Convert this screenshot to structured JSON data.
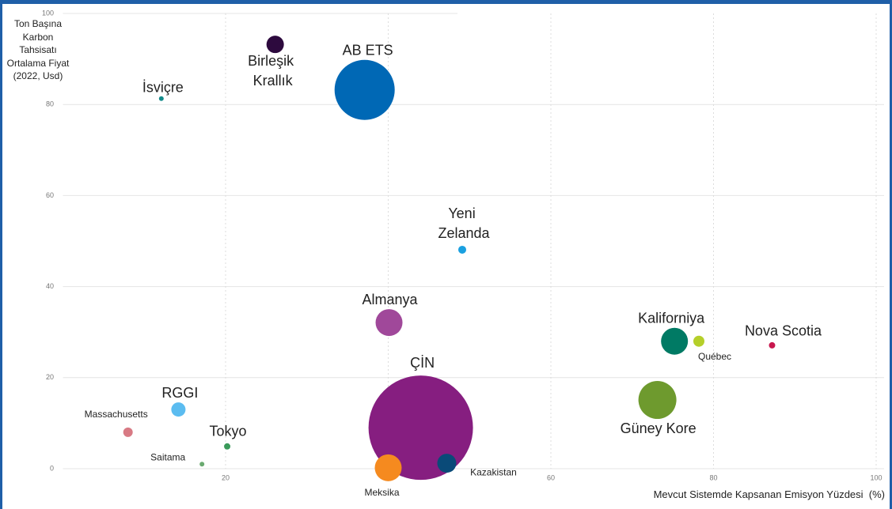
{
  "chart_data": {
    "type": "scatter",
    "x_label": "Mevcut Sistemde Kapsanan Emisyon Yüzdesi  (%)",
    "y_label": "Ton Başına Karbon Tahsisatı Ortalama Fiyat (2022, Usd)",
    "xlim": [
      0,
      100
    ],
    "ylim": [
      0,
      100
    ],
    "xticks": [
      20,
      40,
      60,
      80,
      100
    ],
    "yticks": [
      0,
      20,
      40,
      60,
      80,
      100
    ],
    "grid": true,
    "series": [
      {
        "name": "İsviçre",
        "color": "#138a8a",
        "x": [
          12.1
        ],
        "values": [
          81.3
        ],
        "sizes": [
          3
        ]
      },
      {
        "name": "Birleşik Krallık",
        "color": "#2d0a3e",
        "x": [
          26.1
        ],
        "values": [
          93.2
        ],
        "sizes": [
          11
        ]
      },
      {
        "name": "AB ETS",
        "color": "#0068b5",
        "x": [
          37.1
        ],
        "values": [
          83.2
        ],
        "sizes": [
          38
        ]
      },
      {
        "name": "Yeni Zelanda",
        "color": "#1aa0e0",
        "x": [
          49.1
        ],
        "values": [
          48.1
        ],
        "sizes": [
          5
        ]
      },
      {
        "name": "Almanya",
        "color": "#a0489a",
        "x": [
          40.1
        ],
        "values": [
          32.1
        ],
        "sizes": [
          17
        ]
      },
      {
        "name": "ÇİN",
        "color": "#861e80",
        "x": [
          44.0
        ],
        "values": [
          9.0
        ],
        "sizes": [
          66
        ]
      },
      {
        "name": "Meksika",
        "color": "#f58a1f",
        "x": [
          40.0
        ],
        "values": [
          0.2
        ],
        "sizes": [
          17
        ]
      },
      {
        "name": "Kazakistan",
        "color": "#0a4a78",
        "x": [
          47.2
        ],
        "values": [
          1.2
        ],
        "sizes": [
          12
        ]
      },
      {
        "name": "Kaliforniya",
        "color": "#007a64",
        "x": [
          75.2
        ],
        "values": [
          28.0
        ],
        "sizes": [
          17
        ]
      },
      {
        "name": "Québec",
        "color": "#b5cf2a",
        "x": [
          78.2
        ],
        "values": [
          28.0
        ],
        "sizes": [
          7
        ]
      },
      {
        "name": "Nova Scotia",
        "color": "#c8174e",
        "x": [
          87.2
        ],
        "values": [
          27.1
        ],
        "sizes": [
          4
        ]
      },
      {
        "name": "Güney Kore",
        "color": "#6e9a2e",
        "x": [
          73.1
        ],
        "values": [
          15.1
        ],
        "sizes": [
          24
        ]
      },
      {
        "name": "RGGI",
        "color": "#5bbcf0",
        "x": [
          14.2
        ],
        "values": [
          13.0
        ],
        "sizes": [
          9
        ]
      },
      {
        "name": "Massachusetts",
        "color": "#d87a84",
        "x": [
          8.0
        ],
        "values": [
          8.0
        ],
        "sizes": [
          6
        ]
      },
      {
        "name": "Tokyo",
        "color": "#3a9a5a",
        "x": [
          20.2
        ],
        "values": [
          4.9
        ],
        "sizes": [
          4
        ]
      },
      {
        "name": "Saitama",
        "color": "#6aaa70",
        "x": [
          17.1
        ],
        "values": [
          1.0
        ],
        "sizes": [
          3
        ]
      }
    ]
  }
}
